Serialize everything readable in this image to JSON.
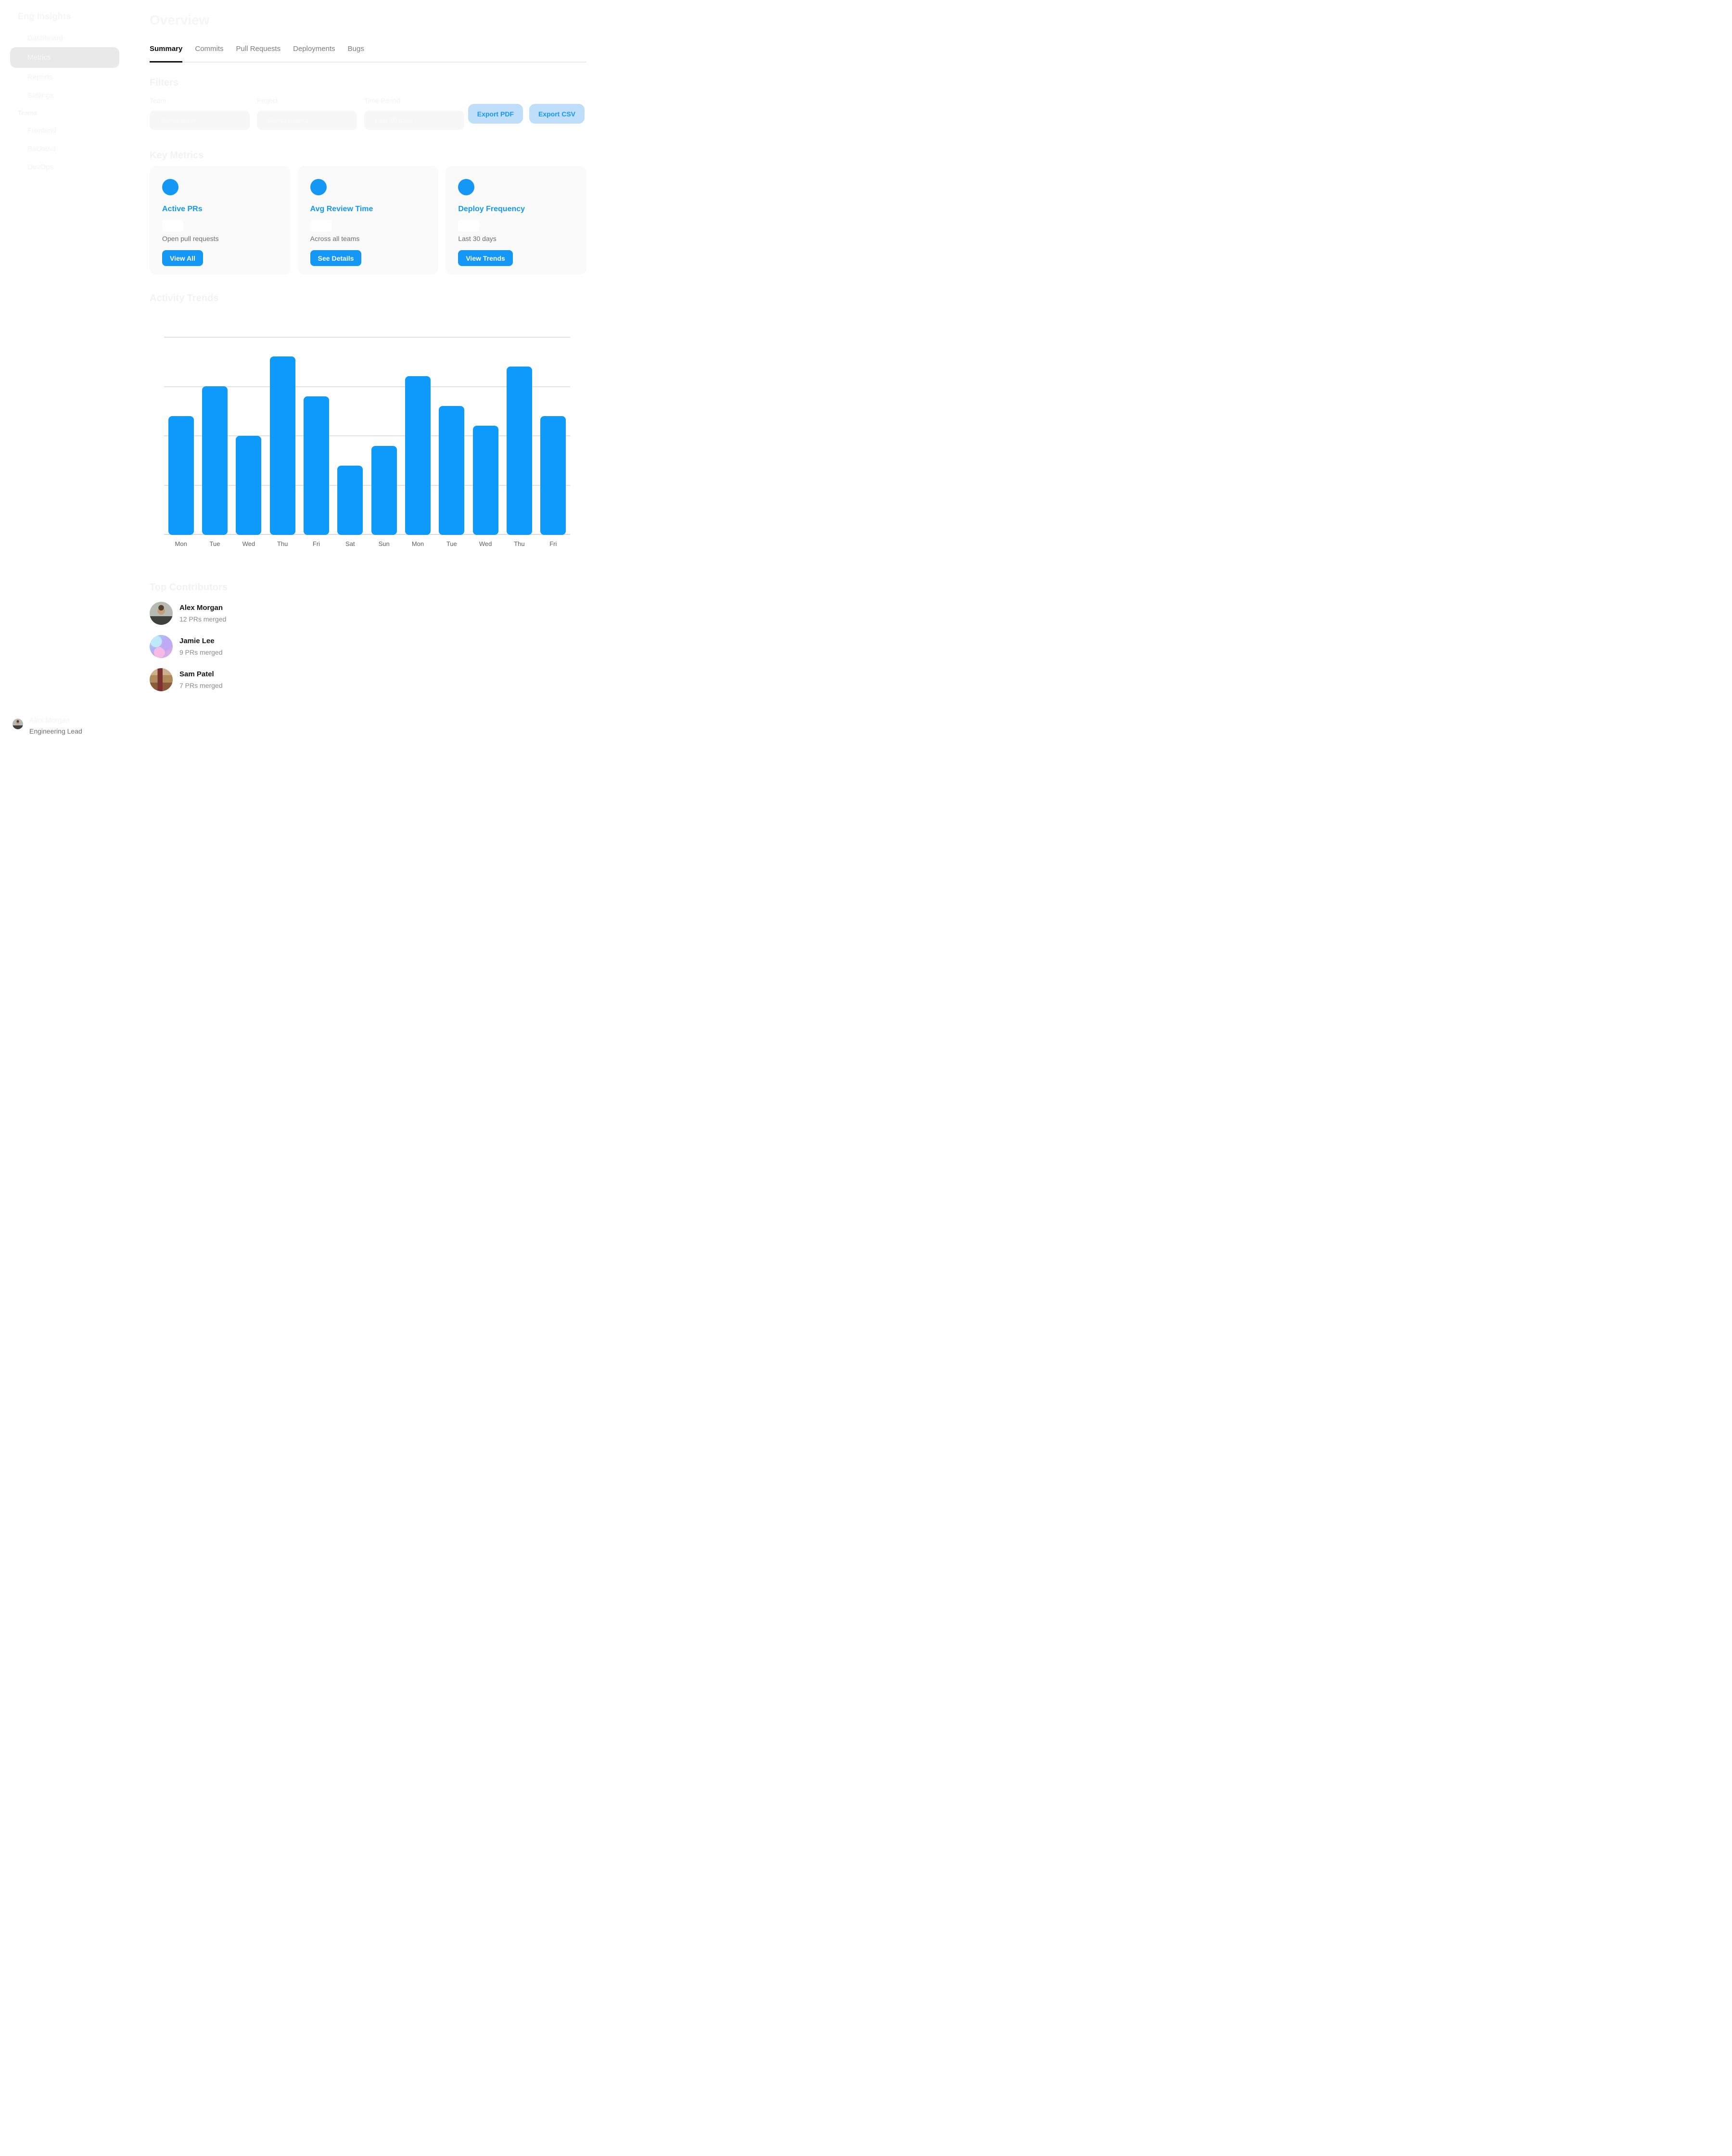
{
  "sidebar": {
    "brand": "Eng Insights",
    "nav": [
      {
        "label": "Dashboard",
        "active": false
      },
      {
        "label": "Metrics",
        "active": true
      },
      {
        "label": "Reports",
        "active": false
      },
      {
        "label": "Settings",
        "active": false
      }
    ],
    "teams_heading": "Teams",
    "teams": [
      "Frontend",
      "Backend",
      "DevOps"
    ]
  },
  "header": {
    "title": "Overview",
    "tabs": [
      {
        "label": "Summary",
        "active": true
      },
      {
        "label": "Commits",
        "active": false
      },
      {
        "label": "Pull Requests",
        "active": false
      },
      {
        "label": "Deployments",
        "active": false
      },
      {
        "label": "Bugs",
        "active": false
      }
    ]
  },
  "filters": {
    "heading": "Filters",
    "fields": [
      {
        "label": "Team",
        "value": "Select team"
      },
      {
        "label": "Project",
        "value": "Select project"
      },
      {
        "label": "Time Period",
        "value": "Last 30 days"
      }
    ],
    "export_pdf_label": "Export PDF",
    "export_csv_label": "Export CSV"
  },
  "key_metrics": {
    "heading": "Key Metrics",
    "cards": [
      {
        "title": "Active PRs",
        "description": "Open pull requests",
        "button": "View All",
        "icon": "blue-circle-icon"
      },
      {
        "title": "Avg Review Time",
        "description": "Across all teams",
        "button": "See Details",
        "icon": "blue-circle-icon"
      },
      {
        "title": "Deploy Frequency",
        "description": "Last 30 days",
        "button": "View Trends",
        "icon": "blue-circle-icon"
      }
    ]
  },
  "chart_data": {
    "type": "bar",
    "title": "Activity Trends",
    "categories": [
      "Mon",
      "Tue",
      "Wed",
      "Thu",
      "Fri",
      "Sat",
      "Sun",
      "Mon",
      "Tue",
      "Wed",
      "Thu",
      "Fri"
    ],
    "values": [
      24,
      30,
      20,
      36,
      28,
      14,
      18,
      32,
      26,
      22,
      34,
      24
    ],
    "xlabel": "",
    "ylabel": "",
    "ylim": [
      0,
      40
    ],
    "gridline_step": 10,
    "grid": true,
    "legend": false,
    "y_tick_labels_visible": false,
    "bar_color": "#0D9AFB"
  },
  "contributors": {
    "heading": "Top Contributors",
    "items": [
      {
        "name": "Alex Morgan",
        "detail": "12 PRs merged",
        "avatar": "alex-portrait-photo"
      },
      {
        "name": "Jamie Lee",
        "detail": "9 PRs merged",
        "avatar": "jamie-abstract-art"
      },
      {
        "name": "Sam Patel",
        "detail": "7 PRs merged",
        "avatar": "sam-construction-photo"
      }
    ]
  },
  "footer_user": {
    "name": "Alex Morgan",
    "role": "Engineering Lead",
    "avatar": "alex-portrait-photo"
  },
  "colors": {
    "accent": "#1497F5",
    "accent_soft_bg": "#BFDEF9",
    "bar": "#0D9AFB",
    "active_tab_text": "#0F0F0F",
    "card_bg": "#FAFAFA",
    "faint_text": "#F2F2F2"
  }
}
